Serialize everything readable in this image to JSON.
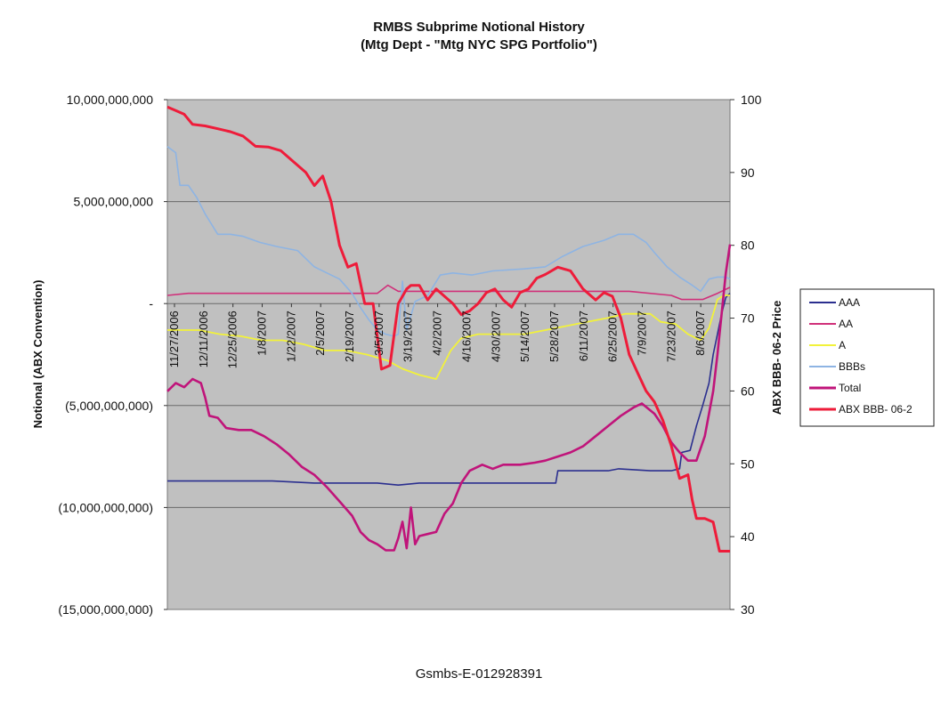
{
  "chart_data": {
    "type": "line",
    "title": "RMBS Subprime Notional History",
    "subtitle": "(Mtg Dept - \"Mtg NYC SPG Portfolio\")",
    "ylabel": "Notional (ABX Convention)",
    "y2label": "ABX BBB- 06-2 Price",
    "ylim": [
      -15000000000,
      10000000000
    ],
    "y2lim": [
      30,
      100
    ],
    "y_ticks": [
      "10,000,000,000",
      "5,000,000,000",
      "-",
      "(5,000,000,000)",
      "(10,000,000,000)",
      "(15,000,000,000)"
    ],
    "y2_ticks": [
      "100",
      "90",
      "80",
      "70",
      "60",
      "50",
      "40",
      "30"
    ],
    "x_date_labels": [
      "11/27/2006",
      "12/11/2006",
      "12/25/2006",
      "1/8/2007",
      "1/22/2007",
      "2/5/2007",
      "2/19/2007",
      "3/5/2007",
      "3/19/2007",
      "4/2/2007",
      "4/16/2007",
      "4/30/2007",
      "5/14/2007",
      "5/28/2007",
      "6/11/2007",
      "6/25/2007",
      "7/9/2007",
      "7/23/2007",
      "8/6/2007"
    ],
    "x_day_range": [
      0,
      258
    ],
    "legend_position": "right",
    "series": [
      {
        "name": "AAA",
        "axis": "left",
        "color": "#2b2f8f",
        "points": [
          [
            0,
            -8.7
          ],
          [
            50,
            -8.7
          ],
          [
            70,
            -8.8
          ],
          [
            95,
            -8.8
          ],
          [
            100,
            -8.8
          ],
          [
            110,
            -8.9
          ],
          [
            120,
            -8.8
          ],
          [
            140,
            -8.8
          ],
          [
            160,
            -8.8
          ],
          [
            185,
            -8.8
          ],
          [
            186,
            -8.2
          ],
          [
            200,
            -8.2
          ],
          [
            210,
            -8.2
          ],
          [
            215,
            -8.1
          ],
          [
            230,
            -8.2
          ],
          [
            240,
            -8.2
          ],
          [
            244,
            -8.1
          ],
          [
            245,
            -7.3
          ],
          [
            249,
            -7.2
          ],
          [
            252,
            -6.0
          ],
          [
            255,
            -5.0
          ],
          [
            258,
            -3.9
          ],
          [
            260,
            -2.5
          ],
          [
            262,
            -1.5
          ],
          [
            264,
            -0.5
          ],
          [
            266,
            0.3
          ],
          [
            268,
            0.5
          ]
        ]
      },
      {
        "name": "AA",
        "axis": "left",
        "color": "#d0307a",
        "points": [
          [
            0,
            0.4
          ],
          [
            10,
            0.5
          ],
          [
            50,
            0.5
          ],
          [
            80,
            0.5
          ],
          [
            100,
            0.5
          ],
          [
            105,
            0.9
          ],
          [
            110,
            0.6
          ],
          [
            120,
            0.6
          ],
          [
            140,
            0.6
          ],
          [
            160,
            0.6
          ],
          [
            200,
            0.6
          ],
          [
            220,
            0.6
          ],
          [
            240,
            0.4
          ],
          [
            245,
            0.2
          ],
          [
            255,
            0.2
          ],
          [
            262,
            0.5
          ],
          [
            268,
            0.8
          ]
        ]
      },
      {
        "name": "A",
        "axis": "left",
        "color": "#f2f23a",
        "points": [
          [
            0,
            -1.3
          ],
          [
            15,
            -1.3
          ],
          [
            25,
            -1.5
          ],
          [
            35,
            -1.6
          ],
          [
            45,
            -1.8
          ],
          [
            55,
            -1.8
          ],
          [
            65,
            -2.0
          ],
          [
            75,
            -2.3
          ],
          [
            85,
            -2.3
          ],
          [
            95,
            -2.5
          ],
          [
            105,
            -2.8
          ],
          [
            112,
            -3.2
          ],
          [
            120,
            -3.5
          ],
          [
            128,
            -3.7
          ],
          [
            135,
            -2.3
          ],
          [
            140,
            -1.7
          ],
          [
            148,
            -1.5
          ],
          [
            155,
            -1.5
          ],
          [
            170,
            -1.5
          ],
          [
            185,
            -1.2
          ],
          [
            200,
            -0.9
          ],
          [
            210,
            -0.7
          ],
          [
            218,
            -0.5
          ],
          [
            230,
            -0.5
          ],
          [
            235,
            -0.9
          ],
          [
            242,
            -1.0
          ],
          [
            248,
            -1.5
          ],
          [
            254,
            -1.8
          ],
          [
            258,
            -1.2
          ],
          [
            262,
            0.2
          ],
          [
            265,
            0.4
          ],
          [
            268,
            0.4
          ]
        ]
      },
      {
        "name": "BBBs",
        "axis": "left",
        "color": "#8eb4e3",
        "points": [
          [
            0,
            7.7
          ],
          [
            4,
            7.4
          ],
          [
            6,
            5.8
          ],
          [
            10,
            5.8
          ],
          [
            14,
            5.2
          ],
          [
            18,
            4.4
          ],
          [
            24,
            3.4
          ],
          [
            30,
            3.4
          ],
          [
            36,
            3.3
          ],
          [
            44,
            3.0
          ],
          [
            52,
            2.8
          ],
          [
            62,
            2.6
          ],
          [
            70,
            1.8
          ],
          [
            76,
            1.5
          ],
          [
            82,
            1.2
          ],
          [
            88,
            0.5
          ],
          [
            92,
            -0.2
          ],
          [
            96,
            -0.8
          ],
          [
            100,
            -1.3
          ],
          [
            104,
            -1.5
          ],
          [
            108,
            -1.6
          ],
          [
            110,
            -1.5
          ],
          [
            112,
            1.1
          ],
          [
            114,
            -1.3
          ],
          [
            118,
            0.1
          ],
          [
            124,
            0.4
          ],
          [
            130,
            1.4
          ],
          [
            136,
            1.5
          ],
          [
            145,
            1.4
          ],
          [
            155,
            1.6
          ],
          [
            170,
            1.7
          ],
          [
            180,
            1.8
          ],
          [
            188,
            2.3
          ],
          [
            198,
            2.8
          ],
          [
            208,
            3.1
          ],
          [
            215,
            3.4
          ],
          [
            222,
            3.4
          ],
          [
            228,
            3.0
          ],
          [
            232,
            2.5
          ],
          [
            238,
            1.8
          ],
          [
            244,
            1.3
          ],
          [
            250,
            0.9
          ],
          [
            254,
            0.6
          ],
          [
            258,
            1.2
          ],
          [
            262,
            1.3
          ],
          [
            266,
            1.3
          ],
          [
            268,
            1.2
          ]
        ]
      },
      {
        "name": "Total",
        "axis": "left",
        "color": "#c0147a",
        "points": [
          [
            0,
            -4.3
          ],
          [
            4,
            -3.9
          ],
          [
            8,
            -4.1
          ],
          [
            12,
            -3.7
          ],
          [
            16,
            -3.9
          ],
          [
            18,
            -4.6
          ],
          [
            20,
            -5.5
          ],
          [
            24,
            -5.6
          ],
          [
            28,
            -6.1
          ],
          [
            34,
            -6.2
          ],
          [
            40,
            -6.2
          ],
          [
            46,
            -6.5
          ],
          [
            52,
            -6.9
          ],
          [
            58,
            -7.4
          ],
          [
            64,
            -8.0
          ],
          [
            70,
            -8.4
          ],
          [
            76,
            -9.0
          ],
          [
            82,
            -9.7
          ],
          [
            88,
            -10.4
          ],
          [
            92,
            -11.2
          ],
          [
            96,
            -11.6
          ],
          [
            100,
            -11.8
          ],
          [
            104,
            -12.1
          ],
          [
            108,
            -12.1
          ],
          [
            110,
            -11.5
          ],
          [
            112,
            -10.7
          ],
          [
            114,
            -12.0
          ],
          [
            116,
            -10.0
          ],
          [
            118,
            -11.8
          ],
          [
            120,
            -11.4
          ],
          [
            124,
            -11.3
          ],
          [
            128,
            -11.2
          ],
          [
            132,
            -10.3
          ],
          [
            136,
            -9.8
          ],
          [
            140,
            -8.8
          ],
          [
            144,
            -8.2
          ],
          [
            150,
            -7.9
          ],
          [
            155,
            -8.1
          ],
          [
            160,
            -7.9
          ],
          [
            168,
            -7.9
          ],
          [
            175,
            -7.8
          ],
          [
            180,
            -7.7
          ],
          [
            186,
            -7.5
          ],
          [
            192,
            -7.3
          ],
          [
            198,
            -7.0
          ],
          [
            204,
            -6.5
          ],
          [
            210,
            -6.0
          ],
          [
            216,
            -5.5
          ],
          [
            222,
            -5.1
          ],
          [
            226,
            -4.9
          ],
          [
            232,
            -5.4
          ],
          [
            236,
            -6.0
          ],
          [
            240,
            -6.8
          ],
          [
            244,
            -7.3
          ],
          [
            248,
            -7.7
          ],
          [
            252,
            -7.7
          ],
          [
            256,
            -6.5
          ],
          [
            260,
            -4.3
          ],
          [
            262,
            -2.5
          ],
          [
            264,
            -0.5
          ],
          [
            266,
            1.5
          ],
          [
            268,
            2.9
          ]
        ]
      },
      {
        "name": "ABX BBB- 06-2",
        "axis": "right",
        "color": "#ee1c3a",
        "points": [
          [
            0,
            99.0
          ],
          [
            4,
            98.5
          ],
          [
            8,
            98.0
          ],
          [
            12,
            96.6
          ],
          [
            18,
            96.4
          ],
          [
            24,
            96.0
          ],
          [
            30,
            95.6
          ],
          [
            36,
            95.0
          ],
          [
            42,
            93.6
          ],
          [
            48,
            93.5
          ],
          [
            54,
            93.0
          ],
          [
            60,
            91.5
          ],
          [
            66,
            90.0
          ],
          [
            70,
            88.2
          ],
          [
            74,
            89.5
          ],
          [
            78,
            86.0
          ],
          [
            82,
            80.0
          ],
          [
            86,
            77.0
          ],
          [
            90,
            77.5
          ],
          [
            94,
            72.0
          ],
          [
            98,
            72.0
          ],
          [
            102,
            63.0
          ],
          [
            106,
            63.5
          ],
          [
            110,
            72.0
          ],
          [
            114,
            74.0
          ],
          [
            116,
            74.5
          ],
          [
            120,
            74.5
          ],
          [
            124,
            72.5
          ],
          [
            128,
            74.0
          ],
          [
            132,
            73.0
          ],
          [
            136,
            72.0
          ],
          [
            140,
            70.5
          ],
          [
            144,
            71.0
          ],
          [
            148,
            72.0
          ],
          [
            152,
            73.5
          ],
          [
            156,
            74.0
          ],
          [
            160,
            72.5
          ],
          [
            164,
            71.5
          ],
          [
            168,
            73.5
          ],
          [
            172,
            74.0
          ],
          [
            176,
            75.5
          ],
          [
            180,
            76.0
          ],
          [
            186,
            77.0
          ],
          [
            192,
            76.5
          ],
          [
            198,
            74.0
          ],
          [
            204,
            72.5
          ],
          [
            208,
            73.5
          ],
          [
            212,
            73.0
          ],
          [
            216,
            70.0
          ],
          [
            220,
            65.0
          ],
          [
            224,
            62.5
          ],
          [
            228,
            60.0
          ],
          [
            232,
            58.5
          ],
          [
            236,
            56.0
          ],
          [
            240,
            52.5
          ],
          [
            244,
            48.0
          ],
          [
            248,
            48.5
          ],
          [
            250,
            45.0
          ],
          [
            252,
            42.5
          ],
          [
            256,
            42.5
          ],
          [
            260,
            42.0
          ],
          [
            263,
            38.0
          ],
          [
            265,
            38.0
          ],
          [
            268,
            38.0
          ]
        ]
      }
    ]
  },
  "footer": {
    "doc_id": "Gsmbs-E-012928391"
  }
}
